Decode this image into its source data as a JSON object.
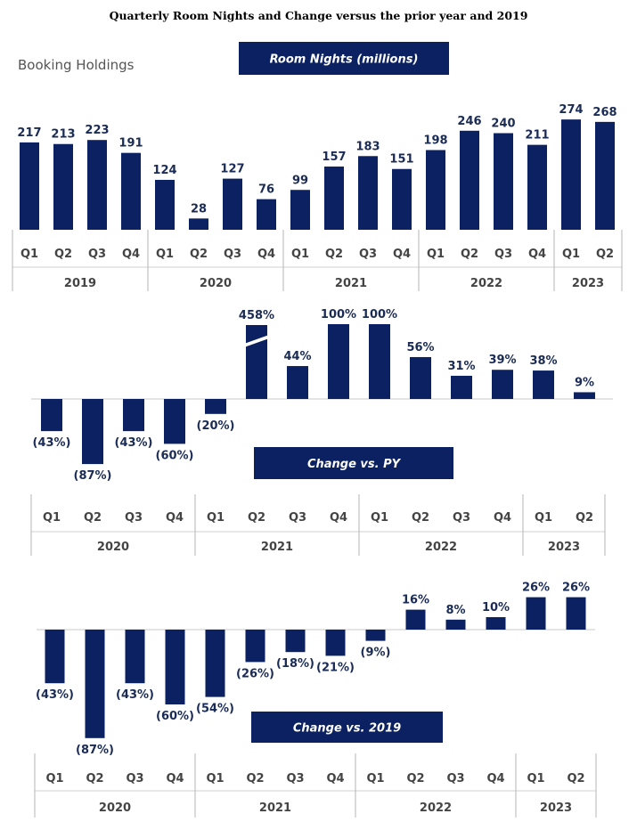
{
  "title": "Quarterly Room Nights and Change versus the prior year and 2019",
  "company": "Booking Holdings",
  "bar_color": "#0b2161",
  "chart_data": [
    {
      "type": "bar",
      "title": "Room Nights (millions)",
      "categories": [
        "Q1",
        "Q2",
        "Q3",
        "Q4",
        "Q1",
        "Q2",
        "Q3",
        "Q4",
        "Q1",
        "Q2",
        "Q3",
        "Q4",
        "Q1",
        "Q2",
        "Q3",
        "Q4",
        "Q1",
        "Q2"
      ],
      "groups": [
        {
          "label": "2019",
          "count": 4
        },
        {
          "label": "2020",
          "count": 4
        },
        {
          "label": "2021",
          "count": 4
        },
        {
          "label": "2022",
          "count": 4
        },
        {
          "label": "2023",
          "count": 2
        }
      ],
      "values": [
        217,
        213,
        223,
        191,
        124,
        28,
        127,
        76,
        99,
        157,
        183,
        151,
        198,
        246,
        240,
        211,
        274,
        268
      ],
      "labels": [
        "217",
        "213",
        "223",
        "191",
        "124",
        "28",
        "127",
        "76",
        "99",
        "157",
        "183",
        "151",
        "198",
        "246",
        "240",
        "211",
        "274",
        "268"
      ],
      "ylim": [
        0,
        280
      ]
    },
    {
      "type": "bar",
      "title": "Change vs. PY",
      "categories": [
        "Q1",
        "Q2",
        "Q3",
        "Q4",
        "Q1",
        "Q2",
        "Q3",
        "Q4",
        "Q1",
        "Q2",
        "Q3",
        "Q4",
        "Q1",
        "Q2"
      ],
      "groups": [
        {
          "label": "2020",
          "count": 4
        },
        {
          "label": "2021",
          "count": 4
        },
        {
          "label": "2022",
          "count": 4
        },
        {
          "label": "2023",
          "count": 2
        }
      ],
      "values": [
        -43,
        -87,
        -43,
        -60,
        -20,
        458,
        44,
        100,
        100,
        56,
        31,
        39,
        38,
        9
      ],
      "labels": [
        "(43%)",
        "(87%)",
        "(43%)",
        "(60%)",
        "(20%)",
        "458%",
        "44%",
        "100%",
        "100%",
        "56%",
        "31%",
        "39%",
        "38%",
        "9%"
      ],
      "axis_break_on": [
        "458%"
      ]
    },
    {
      "type": "bar",
      "title": "Change vs. 2019",
      "categories": [
        "Q1",
        "Q2",
        "Q3",
        "Q4",
        "Q1",
        "Q2",
        "Q3",
        "Q4",
        "Q1",
        "Q2",
        "Q3",
        "Q4",
        "Q1",
        "Q2"
      ],
      "groups": [
        {
          "label": "2020",
          "count": 4
        },
        {
          "label": "2021",
          "count": 4
        },
        {
          "label": "2022",
          "count": 4
        },
        {
          "label": "2023",
          "count": 2
        }
      ],
      "values": [
        -43,
        -87,
        -43,
        -60,
        -54,
        -26,
        -18,
        -21,
        -9,
        16,
        8,
        10,
        26,
        26
      ],
      "labels": [
        "(43%)",
        "(87%)",
        "(43%)",
        "(60%)",
        "(54%)",
        "(26%)",
        "(18%)",
        "(21%)",
        "(9%)",
        "16%",
        "8%",
        "10%",
        "26%",
        "26%"
      ]
    }
  ]
}
